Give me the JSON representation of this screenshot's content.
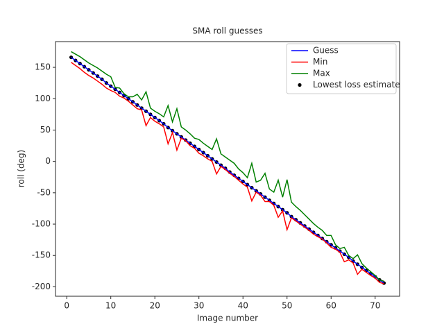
{
  "chart_data": {
    "type": "line",
    "title": "SMA roll guesses",
    "xlabel": "Image number",
    "ylabel": "roll (deg)",
    "x": [
      1,
      2,
      3,
      4,
      5,
      6,
      7,
      8,
      9,
      10,
      11,
      12,
      13,
      14,
      15,
      16,
      17,
      18,
      19,
      20,
      21,
      22,
      23,
      24,
      25,
      26,
      27,
      28,
      29,
      30,
      31,
      32,
      33,
      34,
      35,
      36,
      37,
      38,
      39,
      40,
      41,
      42,
      43,
      44,
      45,
      46,
      47,
      48,
      49,
      50,
      51,
      52,
      53,
      54,
      55,
      56,
      57,
      58,
      59,
      60,
      61,
      62,
      63,
      64,
      65,
      66,
      67,
      68,
      69,
      70,
      71,
      72
    ],
    "series": [
      {
        "name": "Guess",
        "color": "#0000ff",
        "kind": "line",
        "values": [
          166,
          161,
          156,
          151,
          146,
          141,
          136,
          131,
          125,
          120,
          115,
          110,
          105,
          100,
          95,
          90,
          85,
          80,
          75,
          70,
          65,
          60,
          54,
          49,
          44,
          39,
          34,
          29,
          24,
          19,
          14,
          9,
          4,
          -1,
          -6,
          -11,
          -17,
          -22,
          -27,
          -32,
          -37,
          -42,
          -47,
          -52,
          -57,
          -62,
          -67,
          -72,
          -77,
          -82,
          -88,
          -93,
          -98,
          -103,
          -108,
          -113,
          -118,
          -123,
          -128,
          -133,
          -138,
          -143,
          -148,
          -153,
          -159,
          -164,
          -169,
          -174,
          -179,
          -184,
          -189,
          -194
        ]
      },
      {
        "name": "Min",
        "color": "#ff0000",
        "kind": "line",
        "values": [
          158,
          153,
          148,
          142,
          137,
          133,
          128,
          123,
          117,
          113,
          110,
          104,
          101,
          96,
          90,
          84,
          82,
          57,
          70,
          64,
          60,
          55,
          28,
          46,
          18,
          37,
          33,
          25,
          21,
          13,
          9,
          4,
          0,
          -20,
          -8,
          -13,
          -19,
          -24,
          -30,
          -36,
          -41,
          -63,
          -49,
          -54,
          -64,
          -64,
          -70,
          -89,
          -79,
          -109,
          -90,
          -95,
          -100,
          -105,
          -110,
          -116,
          -120,
          -124,
          -130,
          -137,
          -140,
          -145,
          -160,
          -157,
          -162,
          -180,
          -172,
          -177,
          -182,
          -186,
          -193,
          -195
        ]
      },
      {
        "name": "Max",
        "color": "#008000",
        "kind": "line",
        "values": [
          175,
          171,
          167,
          162,
          157,
          153,
          149,
          144,
          139,
          135,
          118,
          117,
          108,
          103,
          103,
          107,
          98,
          111,
          85,
          80,
          76,
          71,
          89,
          63,
          84,
          55,
          50,
          44,
          37,
          35,
          29,
          24,
          19,
          36,
          12,
          7,
          2,
          -3,
          -12,
          -18,
          -26,
          -3,
          -33,
          -30,
          -19,
          -44,
          -49,
          -30,
          -57,
          -29,
          -65,
          -72,
          -78,
          -85,
          -92,
          -99,
          -105,
          -110,
          -118,
          -118,
          -133,
          -139,
          -137,
          -150,
          -155,
          -149,
          -163,
          -170,
          -176,
          -182,
          -189,
          -191
        ]
      },
      {
        "name": "Lowest loss estimate",
        "color": "#000000",
        "kind": "scatter",
        "values": [
          166,
          161,
          156,
          151,
          146,
          141,
          136,
          131,
          125,
          120,
          115,
          110,
          105,
          100,
          95,
          90,
          85,
          80,
          75,
          70,
          65,
          60,
          54,
          49,
          44,
          39,
          34,
          29,
          24,
          19,
          14,
          9,
          4,
          -1,
          -6,
          -11,
          -17,
          -22,
          -27,
          -32,
          -37,
          -42,
          -47,
          -52,
          -57,
          -62,
          -67,
          -72,
          -77,
          -82,
          -88,
          -93,
          -98,
          -103,
          -108,
          -113,
          -118,
          -123,
          -128,
          -133,
          -138,
          -143,
          -148,
          -153,
          -159,
          -164,
          -169,
          -174,
          -179,
          -184,
          -189,
          -194
        ]
      }
    ],
    "xlim": [
      -2.55,
      75.55
    ],
    "xticks": [
      0,
      10,
      20,
      30,
      40,
      50,
      60,
      70
    ],
    "ylim": [
      -215,
      191
    ],
    "yticks": [
      -200,
      -150,
      -100,
      -50,
      0,
      50,
      100,
      150
    ],
    "legend": "upper right",
    "grid": false
  }
}
